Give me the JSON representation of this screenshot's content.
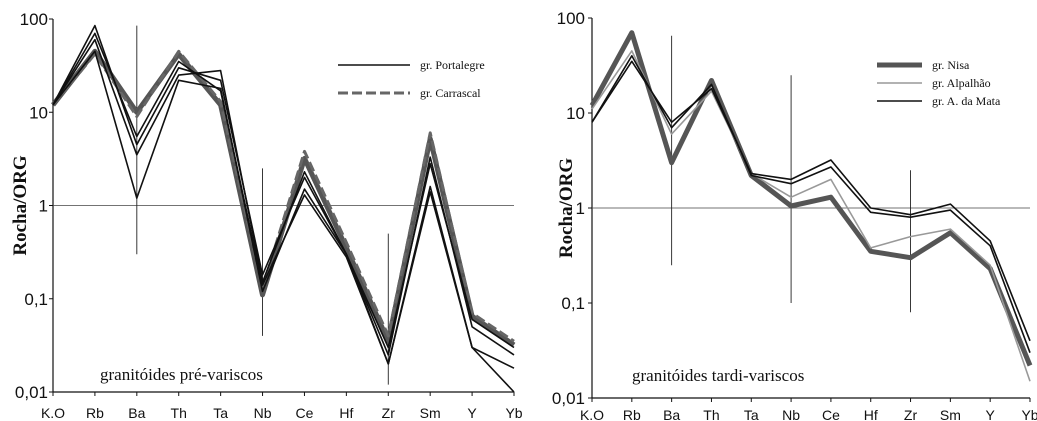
{
  "chart_data": [
    {
      "type": "line",
      "y_scale": "log",
      "ylim": [
        0.01,
        100
      ],
      "ylabel": "Rocha/ORG",
      "yticks": [
        "100",
        "10",
        "1",
        "0,1",
        "0,01"
      ],
      "categories": [
        "K.O",
        "Rb",
        "Ba",
        "Th",
        "Ta",
        "Nb",
        "Ce",
        "Hf",
        "Zr",
        "Sm",
        "Y",
        "Yb"
      ],
      "annotation": "granitóides pré-variscos",
      "legend_position": "top-right",
      "series": [
        {
          "name": "gr. Portalegre",
          "style": "solid",
          "color": "#111111",
          "values": [
            12,
            60,
            3.5,
            25,
            28,
            0.15,
            2.3,
            0.3,
            0.025,
            3.3,
            0.05,
            0.025
          ]
        },
        {
          "name": "gr. Portalegre",
          "style": "solid",
          "color": "#111111",
          "values": [
            12,
            85,
            4.5,
            30,
            22,
            0.18,
            2.0,
            0.3,
            0.03,
            2.8,
            0.06,
            0.03
          ]
        },
        {
          "name": "gr. Portalegre",
          "style": "solid",
          "color": "#111111",
          "values": [
            12,
            45,
            1.2,
            22,
            18,
            0.12,
            1.5,
            0.3,
            0.02,
            1.6,
            0.03,
            0.01
          ]
        },
        {
          "name": "gr. Portalegre",
          "style": "solid",
          "color": "#111111",
          "values": [
            12,
            70,
            5.5,
            35,
            17,
            0.14,
            1.3,
            0.28,
            0.02,
            1.4,
            0.03,
            0.018
          ]
        },
        {
          "name": "gr. Carrascal",
          "style": "dashed",
          "color": "#666666",
          "values": [
            12,
            42,
            9,
            45,
            13,
            0.13,
            3.8,
            0.4,
            0.04,
            6.0,
            0.07,
            0.035
          ]
        },
        {
          "name": "gr. Carrascal",
          "style": "thick",
          "color": "#555555",
          "values": [
            12,
            45,
            10,
            42,
            12,
            0.11,
            3.2,
            0.35,
            0.035,
            5.2,
            0.065,
            0.032
          ]
        }
      ],
      "vertical_bars": [
        {
          "category": "Ba",
          "range": [
            0.3,
            85
          ]
        },
        {
          "category": "Nb",
          "range": [
            0.04,
            2.5
          ]
        },
        {
          "category": "Zr",
          "range": [
            0.012,
            0.5
          ]
        }
      ]
    },
    {
      "type": "line",
      "y_scale": "log",
      "ylim": [
        0.01,
        100
      ],
      "ylabel": "Rocha/ORG",
      "yticks": [
        "100",
        "10",
        "1",
        "0,1",
        "0,01"
      ],
      "categories": [
        "K.O",
        "Rb",
        "Ba",
        "Th",
        "Ta",
        "Nb",
        "Ce",
        "Hf",
        "Zr",
        "Sm",
        "Y",
        "Yb"
      ],
      "annotation": "granitóides tardi-variscos",
      "legend_position": "top-right",
      "series": [
        {
          "name": "gr. Nisa",
          "style": "thick",
          "color": "#555555",
          "values": [
            12,
            70,
            3,
            22,
            2.2,
            1.05,
            1.3,
            0.35,
            0.3,
            0.55,
            0.23,
            0.022
          ]
        },
        {
          "name": "gr. Alpalhão",
          "style": "solid",
          "color": "#999999",
          "values": [
            11,
            45,
            6,
            17,
            2.3,
            1.3,
            2.0,
            0.38,
            0.5,
            0.6,
            0.25,
            0.015
          ]
        },
        {
          "name": "gr. A. da Mata",
          "style": "solid",
          "color": "#111111",
          "values": [
            8,
            35,
            8,
            18,
            2.3,
            2.0,
            3.2,
            1.0,
            0.85,
            1.1,
            0.45,
            0.04
          ]
        },
        {
          "name": "gr. A. da Mata",
          "style": "solid",
          "color": "#111111",
          "values": [
            8,
            40,
            7,
            20,
            2.2,
            1.8,
            2.7,
            0.9,
            0.8,
            0.95,
            0.4,
            0.03
          ]
        }
      ],
      "vertical_bars": [
        {
          "category": "Ba",
          "range": [
            0.25,
            65
          ]
        },
        {
          "category": "Nb",
          "range": [
            0.1,
            25
          ]
        },
        {
          "category": "Zr",
          "range": [
            0.08,
            2.5
          ]
        }
      ]
    }
  ]
}
